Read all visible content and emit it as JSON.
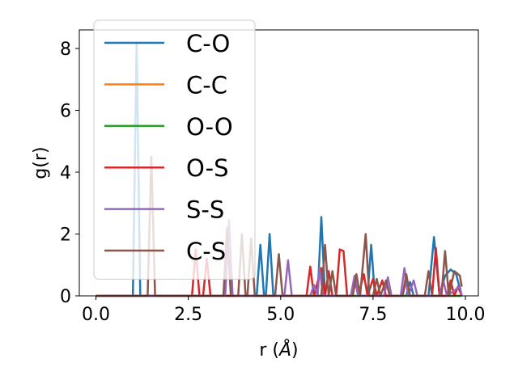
{
  "chart_data": {
    "type": "line",
    "xlabel_main": "r (",
    "xlabel_unit": "Å",
    "xlabel_close": ")",
    "ylabel": "g(r)",
    "xlim": [
      -0.45,
      10.35
    ],
    "ylim": [
      0,
      8.6
    ],
    "x_ticks": [
      0.0,
      2.5,
      5.0,
      7.5,
      10.0
    ],
    "x_tick_labels": [
      "0.0",
      "2.5",
      "5.0",
      "7.5",
      "10.0"
    ],
    "y_ticks": [
      0,
      2,
      4,
      6,
      8
    ],
    "y_tick_labels": [
      "0",
      "2",
      "4",
      "6",
      "8"
    ],
    "grid": false,
    "legend_position": "top-left",
    "series": [
      {
        "name": "C-O",
        "color": "#1f77b4",
        "points": [
          [
            0,
            0
          ],
          [
            1.0,
            0
          ],
          [
            1.1,
            8.2
          ],
          [
            1.2,
            0
          ],
          [
            4.35,
            0
          ],
          [
            4.45,
            1.65
          ],
          [
            4.55,
            0
          ],
          [
            4.6,
            0
          ],
          [
            4.7,
            2.0
          ],
          [
            4.8,
            0
          ],
          [
            6.0,
            0
          ],
          [
            6.1,
            2.55
          ],
          [
            6.2,
            0
          ],
          [
            7.35,
            0
          ],
          [
            7.45,
            1.65
          ],
          [
            7.55,
            0
          ],
          [
            8.4,
            0
          ],
          [
            8.5,
            0.45
          ],
          [
            8.6,
            0
          ],
          [
            9.0,
            0
          ],
          [
            9.15,
            1.9
          ],
          [
            9.3,
            0
          ],
          [
            9.45,
            0.65
          ],
          [
            9.6,
            0.85
          ],
          [
            9.75,
            0.7
          ],
          [
            9.9,
            0
          ]
        ]
      },
      {
        "name": "C-C",
        "color": "#ff7f0e",
        "points": [
          [
            0,
            0
          ],
          [
            9.9,
            0
          ]
        ]
      },
      {
        "name": "O-O",
        "color": "#2ca02c",
        "points": [
          [
            0,
            0
          ],
          [
            9.9,
            0
          ]
        ]
      },
      {
        "name": "O-S",
        "color": "#d62728",
        "points": [
          [
            0,
            0
          ],
          [
            2.6,
            0
          ],
          [
            2.7,
            1.5
          ],
          [
            2.8,
            0
          ],
          [
            2.9,
            0
          ],
          [
            3.0,
            1.2
          ],
          [
            3.1,
            0
          ],
          [
            5.7,
            0
          ],
          [
            5.8,
            0.95
          ],
          [
            5.9,
            0
          ],
          [
            6.1,
            0.9
          ],
          [
            6.2,
            0
          ],
          [
            6.3,
            0.8
          ],
          [
            6.4,
            0
          ],
          [
            6.5,
            0
          ],
          [
            6.6,
            1.5
          ],
          [
            6.7,
            1.45
          ],
          [
            6.8,
            0
          ],
          [
            6.9,
            0
          ],
          [
            7.0,
            0.55
          ],
          [
            7.1,
            0
          ],
          [
            7.25,
            0.7
          ],
          [
            7.35,
            0
          ],
          [
            7.5,
            0.55
          ],
          [
            7.6,
            0
          ],
          [
            7.75,
            0.5
          ],
          [
            7.85,
            0
          ],
          [
            8.3,
            0
          ],
          [
            8.4,
            0.55
          ],
          [
            8.5,
            0
          ],
          [
            9.1,
            0
          ],
          [
            9.2,
            1.55
          ],
          [
            9.3,
            0
          ],
          [
            9.5,
            0
          ],
          [
            9.6,
            0.5
          ],
          [
            9.7,
            0
          ],
          [
            9.8,
            0.3
          ],
          [
            9.9,
            0
          ]
        ]
      },
      {
        "name": "S-S",
        "color": "#9467bd",
        "points": [
          [
            0,
            0
          ],
          [
            3.5,
            0
          ],
          [
            3.6,
            2.45
          ],
          [
            3.7,
            0
          ],
          [
            5.1,
            0
          ],
          [
            5.2,
            1.15
          ],
          [
            5.3,
            0
          ],
          [
            5.8,
            0
          ],
          [
            5.9,
            0.35
          ],
          [
            6.0,
            0
          ],
          [
            6.05,
            0.9
          ],
          [
            6.15,
            0
          ],
          [
            6.9,
            0
          ],
          [
            7.0,
            0.65
          ],
          [
            7.1,
            0
          ],
          [
            7.8,
            0
          ],
          [
            7.9,
            0.6
          ],
          [
            8.0,
            0
          ],
          [
            8.25,
            0
          ],
          [
            8.35,
            0.9
          ],
          [
            8.45,
            0
          ],
          [
            8.6,
            0.5
          ],
          [
            8.7,
            0
          ],
          [
            9.3,
            0
          ],
          [
            9.4,
            0.5
          ],
          [
            9.5,
            0
          ],
          [
            9.85,
            0.3
          ],
          [
            9.9,
            0
          ]
        ]
      },
      {
        "name": "C-S",
        "color": "#8c564b",
        "points": [
          [
            0,
            0
          ],
          [
            1.4,
            0
          ],
          [
            1.5,
            4.5
          ],
          [
            1.6,
            0
          ],
          [
            3.45,
            0
          ],
          [
            3.55,
            2.2
          ],
          [
            3.65,
            0
          ],
          [
            3.85,
            0
          ],
          [
            3.95,
            2.0
          ],
          [
            4.05,
            0
          ],
          [
            4.1,
            0
          ],
          [
            4.2,
            1.85
          ],
          [
            4.3,
            0
          ],
          [
            4.85,
            0
          ],
          [
            4.95,
            1.35
          ],
          [
            5.05,
            0
          ],
          [
            6.1,
            0
          ],
          [
            6.2,
            1.65
          ],
          [
            6.3,
            0
          ],
          [
            6.4,
            0.8
          ],
          [
            6.5,
            0
          ],
          [
            6.95,
            0
          ],
          [
            7.05,
            0.7
          ],
          [
            7.15,
            0
          ],
          [
            7.3,
            2.0
          ],
          [
            7.4,
            0
          ],
          [
            7.5,
            0
          ],
          [
            7.6,
            0.55
          ],
          [
            7.7,
            0
          ],
          [
            7.85,
            0.5
          ],
          [
            7.95,
            0
          ],
          [
            8.3,
            0
          ],
          [
            8.4,
            0.7
          ],
          [
            8.5,
            0
          ],
          [
            8.9,
            0
          ],
          [
            9.0,
            0.8
          ],
          [
            9.1,
            0
          ],
          [
            9.35,
            0
          ],
          [
            9.45,
            1.45
          ],
          [
            9.55,
            0
          ],
          [
            9.7,
            0.8
          ],
          [
            9.85,
            0.65
          ],
          [
            9.9,
            0.3
          ]
        ]
      }
    ]
  }
}
